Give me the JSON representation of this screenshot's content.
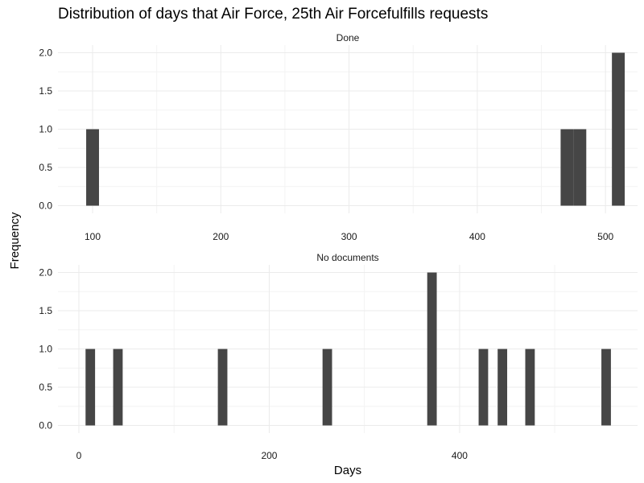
{
  "chart_data": {
    "type": "bar",
    "title": "Distribution of days that Air Force, 25th Air Forcefulfills requests",
    "xlabel": "Days",
    "ylabel": "Frequency",
    "grid": true,
    "bar_color": "#464646",
    "grid_color": "#ebebeb",
    "panels": [
      {
        "name": "Done",
        "xlim": [
          73,
          525
        ],
        "ylim": [
          -0.1,
          2.1
        ],
        "xticks": [
          100,
          200,
          300,
          400,
          500
        ],
        "yticks": [
          0.0,
          0.5,
          1.0,
          1.5,
          2.0
        ],
        "ytick_labels": [
          "0.0",
          "0.5",
          "1.0",
          "1.5",
          "2.0"
        ],
        "bars": [
          {
            "x0": 95,
            "x1": 105,
            "count": 1
          },
          {
            "x0": 465,
            "x1": 475,
            "count": 1
          },
          {
            "x0": 475,
            "x1": 485,
            "count": 1
          },
          {
            "x0": 505,
            "x1": 515,
            "count": 2
          }
        ]
      },
      {
        "name": "No documents",
        "xlim": [
          -22,
          587
        ],
        "ylim": [
          -0.1,
          2.1
        ],
        "xticks": [
          0,
          200,
          400
        ],
        "yticks": [
          0.0,
          0.5,
          1.0,
          1.5,
          2.0
        ],
        "ytick_labels": [
          "0.0",
          "0.5",
          "1.0",
          "1.5",
          "2.0"
        ],
        "bars": [
          {
            "x0": 7,
            "x1": 17,
            "count": 1
          },
          {
            "x0": 36,
            "x1": 46,
            "count": 1
          },
          {
            "x0": 146,
            "x1": 156,
            "count": 1
          },
          {
            "x0": 256,
            "x1": 266,
            "count": 1
          },
          {
            "x0": 366,
            "x1": 376,
            "count": 2
          },
          {
            "x0": 420,
            "x1": 430,
            "count": 1
          },
          {
            "x0": 440,
            "x1": 450,
            "count": 1
          },
          {
            "x0": 469,
            "x1": 479,
            "count": 1
          },
          {
            "x0": 549,
            "x1": 559,
            "count": 1
          }
        ]
      }
    ]
  }
}
